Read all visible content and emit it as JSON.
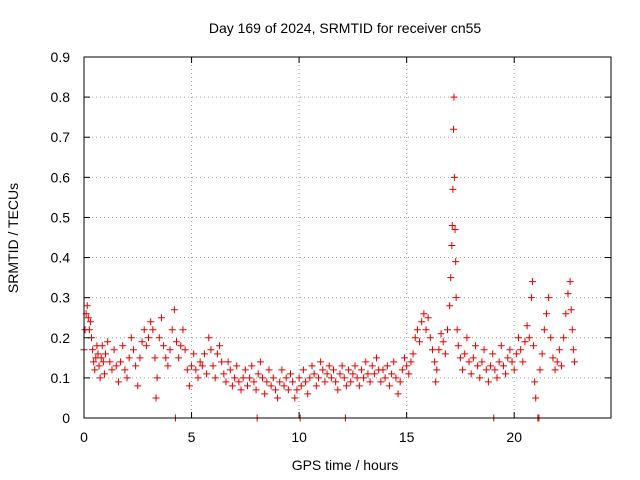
{
  "chart_data": {
    "type": "scatter",
    "title": "Day 169 of 2024, SRMTID for receiver cn55",
    "xlabel": "GPS time / hours",
    "ylabel": "SRMTID / TECUs",
    "xlim": [
      0,
      24.5
    ],
    "ylim": [
      0,
      0.9
    ],
    "xticks": [
      0,
      5,
      10,
      15,
      20
    ],
    "yticks": [
      0,
      0.1,
      0.2,
      0.3,
      0.4,
      0.5,
      0.6,
      0.7,
      0.8,
      0.9
    ],
    "xtick_labels": [
      "0",
      "5",
      "10",
      "15",
      "20"
    ],
    "ytick_labels": [
      "0",
      "0.1",
      "0.2",
      "0.3",
      "0.4",
      "0.5",
      "0.6",
      "0.7",
      "0.8",
      "0.9"
    ],
    "grid": true,
    "marker": "+",
    "color": "#e00000",
    "series": [
      {
        "name": "SRMTID",
        "points": [
          [
            0.0,
            0.17
          ],
          [
            0.05,
            0.22
          ],
          [
            0.1,
            0.26
          ],
          [
            0.15,
            0.28
          ],
          [
            0.2,
            0.25
          ],
          [
            0.25,
            0.22
          ],
          [
            0.3,
            0.24
          ],
          [
            0.35,
            0.2
          ],
          [
            0.4,
            0.17
          ],
          [
            0.45,
            0.14
          ],
          [
            0.5,
            0.12
          ],
          [
            0.55,
            0.15
          ],
          [
            0.6,
            0.18
          ],
          [
            0.65,
            0.16
          ],
          [
            0.7,
            0.13
          ],
          [
            0.75,
            0.1
          ],
          [
            0.8,
            0.15
          ],
          [
            0.85,
            0.18
          ],
          [
            0.9,
            0.14
          ],
          [
            0.95,
            0.11
          ],
          [
            1.0,
            0.16
          ],
          [
            1.1,
            0.19
          ],
          [
            1.2,
            0.14
          ],
          [
            1.3,
            0.12
          ],
          [
            1.4,
            0.17
          ],
          [
            1.5,
            0.13
          ],
          [
            1.6,
            0.09
          ],
          [
            1.7,
            0.14
          ],
          [
            1.8,
            0.18
          ],
          [
            1.9,
            0.12
          ],
          [
            2.0,
            0.1
          ],
          [
            2.1,
            0.15
          ],
          [
            2.2,
            0.2
          ],
          [
            2.3,
            0.17
          ],
          [
            2.4,
            0.13
          ],
          [
            2.5,
            0.08
          ],
          [
            2.6,
            0.15
          ],
          [
            2.7,
            0.19
          ],
          [
            2.8,
            0.22
          ],
          [
            2.9,
            0.18
          ],
          [
            3.0,
            0.2
          ],
          [
            3.1,
            0.24
          ],
          [
            3.2,
            0.22
          ],
          [
            3.3,
            0.15
          ],
          [
            3.35,
            0.05
          ],
          [
            3.4,
            0.1
          ],
          [
            3.5,
            0.2
          ],
          [
            3.6,
            0.25
          ],
          [
            3.7,
            0.18
          ],
          [
            3.8,
            0.15
          ],
          [
            3.9,
            0.13
          ],
          [
            4.0,
            0.17
          ],
          [
            4.1,
            0.22
          ],
          [
            4.2,
            0.27
          ],
          [
            4.25,
            0.0
          ],
          [
            4.3,
            0.19
          ],
          [
            4.4,
            0.15
          ],
          [
            4.5,
            0.18
          ],
          [
            4.6,
            0.22
          ],
          [
            4.7,
            0.17
          ],
          [
            4.8,
            0.12
          ],
          [
            4.9,
            0.08
          ],
          [
            5.0,
            0.13
          ],
          [
            5.1,
            0.16
          ],
          [
            5.2,
            0.12
          ],
          [
            5.3,
            0.1
          ],
          [
            5.4,
            0.14
          ],
          [
            5.5,
            0.13
          ],
          [
            5.6,
            0.16
          ],
          [
            5.7,
            0.11
          ],
          [
            5.8,
            0.2
          ],
          [
            5.9,
            0.17
          ],
          [
            6.0,
            0.13
          ],
          [
            6.1,
            0.1
          ],
          [
            6.2,
            0.16
          ],
          [
            6.3,
            0.18
          ],
          [
            6.4,
            0.14
          ],
          [
            6.5,
            0.11
          ],
          [
            6.6,
            0.09
          ],
          [
            6.7,
            0.14
          ],
          [
            6.8,
            0.12
          ],
          [
            6.9,
            0.08
          ],
          [
            7.0,
            0.1
          ],
          [
            7.1,
            0.13
          ],
          [
            7.2,
            0.09
          ],
          [
            7.3,
            0.07
          ],
          [
            7.4,
            0.1
          ],
          [
            7.5,
            0.12
          ],
          [
            7.6,
            0.08
          ],
          [
            7.7,
            0.1
          ],
          [
            7.8,
            0.13
          ],
          [
            7.9,
            0.09
          ],
          [
            8.0,
            0.07
          ],
          [
            8.05,
            0.0
          ],
          [
            8.1,
            0.11
          ],
          [
            8.2,
            0.14
          ],
          [
            8.3,
            0.1
          ],
          [
            8.4,
            0.06
          ],
          [
            8.5,
            0.09
          ],
          [
            8.6,
            0.12
          ],
          [
            8.7,
            0.08
          ],
          [
            8.8,
            0.1
          ],
          [
            8.9,
            0.07
          ],
          [
            9.0,
            0.05
          ],
          [
            9.1,
            0.09
          ],
          [
            9.2,
            0.12
          ],
          [
            9.3,
            0.08
          ],
          [
            9.4,
            0.1
          ],
          [
            9.5,
            0.07
          ],
          [
            9.6,
            0.11
          ],
          [
            9.7,
            0.09
          ],
          [
            9.8,
            0.05
          ],
          [
            9.9,
            0.07
          ],
          [
            10.0,
            0.1
          ],
          [
            10.05,
            0.0
          ],
          [
            10.1,
            0.08
          ],
          [
            10.2,
            0.12
          ],
          [
            10.3,
            0.09
          ],
          [
            10.4,
            0.06
          ],
          [
            10.5,
            0.1
          ],
          [
            10.6,
            0.13
          ],
          [
            10.7,
            0.11
          ],
          [
            10.8,
            0.08
          ],
          [
            10.9,
            0.1
          ],
          [
            11.0,
            0.14
          ],
          [
            11.1,
            0.12
          ],
          [
            11.2,
            0.09
          ],
          [
            11.3,
            0.11
          ],
          [
            11.4,
            0.13
          ],
          [
            11.5,
            0.1
          ],
          [
            11.6,
            0.12
          ],
          [
            11.7,
            0.09
          ],
          [
            11.8,
            0.07
          ],
          [
            11.9,
            0.11
          ],
          [
            12.0,
            0.13
          ],
          [
            12.1,
            0.1
          ],
          [
            12.15,
            0.0
          ],
          [
            12.2,
            0.08
          ],
          [
            12.3,
            0.12
          ],
          [
            12.4,
            0.09
          ],
          [
            12.5,
            0.11
          ],
          [
            12.6,
            0.13
          ],
          [
            12.7,
            0.1
          ],
          [
            12.8,
            0.08
          ],
          [
            12.9,
            0.12
          ],
          [
            13.0,
            0.1
          ],
          [
            13.1,
            0.14
          ],
          [
            13.2,
            0.11
          ],
          [
            13.3,
            0.09
          ],
          [
            13.4,
            0.13
          ],
          [
            13.5,
            0.11
          ],
          [
            13.6,
            0.15
          ],
          [
            13.7,
            0.12
          ],
          [
            13.8,
            0.09
          ],
          [
            13.9,
            0.12
          ],
          [
            14.0,
            0.1
          ],
          [
            14.1,
            0.13
          ],
          [
            14.2,
            0.08
          ],
          [
            14.3,
            0.11
          ],
          [
            14.4,
            0.14
          ],
          [
            14.5,
            0.1
          ],
          [
            14.6,
            0.06
          ],
          [
            14.7,
            0.09
          ],
          [
            14.8,
            0.12
          ],
          [
            14.9,
            0.15
          ],
          [
            15.0,
            0.13
          ],
          [
            15.1,
            0.11
          ],
          [
            15.2,
            0.14
          ],
          [
            15.3,
            0.16
          ],
          [
            15.4,
            0.2
          ],
          [
            15.5,
            0.22
          ],
          [
            15.6,
            0.19
          ],
          [
            15.7,
            0.24
          ],
          [
            15.8,
            0.26
          ],
          [
            15.9,
            0.22
          ],
          [
            16.0,
            0.25
          ],
          [
            16.1,
            0.2
          ],
          [
            16.2,
            0.17
          ],
          [
            16.3,
            0.14
          ],
          [
            16.35,
            0.09
          ],
          [
            16.4,
            0.12
          ],
          [
            16.5,
            0.17
          ],
          [
            16.6,
            0.21
          ],
          [
            16.7,
            0.19
          ],
          [
            16.8,
            0.16
          ],
          [
            16.9,
            0.22
          ],
          [
            17.0,
            0.28
          ],
          [
            17.05,
            0.35
          ],
          [
            17.1,
            0.43
          ],
          [
            17.12,
            0.48
          ],
          [
            17.15,
            0.57
          ],
          [
            17.18,
            0.72
          ],
          [
            17.2,
            0.8
          ],
          [
            17.22,
            0.6
          ],
          [
            17.25,
            0.47
          ],
          [
            17.28,
            0.39
          ],
          [
            17.3,
            0.3
          ],
          [
            17.35,
            0.22
          ],
          [
            17.4,
            0.18
          ],
          [
            17.5,
            0.15
          ],
          [
            17.6,
            0.12
          ],
          [
            17.7,
            0.16
          ],
          [
            17.8,
            0.2
          ],
          [
            17.9,
            0.14
          ],
          [
            18.0,
            0.11
          ],
          [
            18.1,
            0.15
          ],
          [
            18.2,
            0.18
          ],
          [
            18.3,
            0.13
          ],
          [
            18.4,
            0.1
          ],
          [
            18.5,
            0.14
          ],
          [
            18.6,
            0.17
          ],
          [
            18.7,
            0.12
          ],
          [
            18.8,
            0.09
          ],
          [
            18.9,
            0.13
          ],
          [
            19.0,
            0.16
          ],
          [
            19.05,
            0.0
          ],
          [
            19.1,
            0.12
          ],
          [
            19.2,
            0.1
          ],
          [
            19.3,
            0.14
          ],
          [
            19.4,
            0.18
          ],
          [
            19.5,
            0.13
          ],
          [
            19.6,
            0.11
          ],
          [
            19.7,
            0.15
          ],
          [
            19.8,
            0.17
          ],
          [
            19.9,
            0.14
          ],
          [
            20.0,
            0.12
          ],
          [
            20.1,
            0.16
          ],
          [
            20.2,
            0.2
          ],
          [
            20.3,
            0.17
          ],
          [
            20.4,
            0.14
          ],
          [
            20.5,
            0.19
          ],
          [
            20.6,
            0.23
          ],
          [
            20.7,
            0.2
          ],
          [
            20.8,
            0.3
          ],
          [
            20.85,
            0.34
          ],
          [
            20.9,
            0.18
          ],
          [
            20.95,
            0.09
          ],
          [
            21.0,
            0.05
          ],
          [
            21.1,
            0.0
          ],
          [
            21.15,
            0.0
          ],
          [
            21.2,
            0.12
          ],
          [
            21.3,
            0.16
          ],
          [
            21.4,
            0.22
          ],
          [
            21.5,
            0.26
          ],
          [
            21.6,
            0.3
          ],
          [
            21.7,
            0.2
          ],
          [
            21.8,
            0.15
          ],
          [
            21.9,
            0.12
          ],
          [
            22.0,
            0.14
          ],
          [
            22.1,
            0.17
          ],
          [
            22.2,
            0.13
          ],
          [
            22.3,
            0.2
          ],
          [
            22.4,
            0.26
          ],
          [
            22.5,
            0.31
          ],
          [
            22.6,
            0.34
          ],
          [
            22.65,
            0.27
          ],
          [
            22.7,
            0.22
          ],
          [
            22.75,
            0.17
          ],
          [
            22.8,
            0.14
          ]
        ]
      }
    ]
  }
}
